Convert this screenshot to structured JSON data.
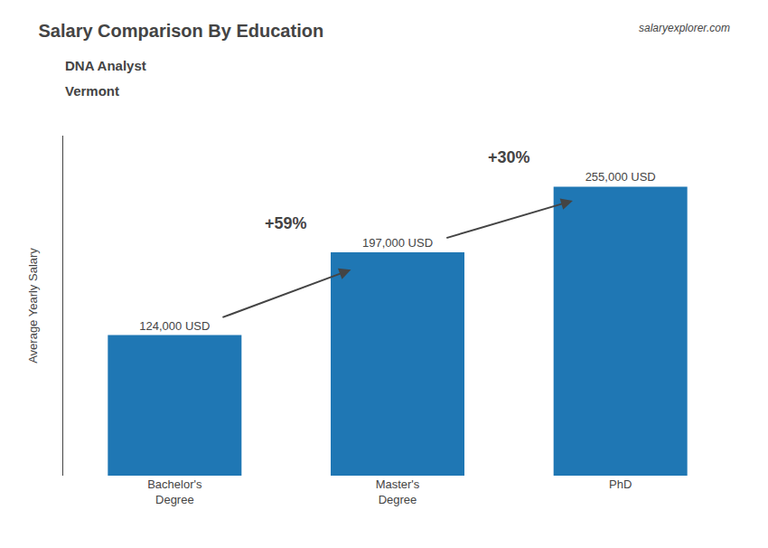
{
  "chart_data": {
    "type": "bar",
    "title": "Salary Comparison By Education",
    "subtitle": [
      "DNA Analyst",
      "Vermont"
    ],
    "categories": [
      "Bachelor's\nDegree",
      "Master's\nDegree",
      "PhD"
    ],
    "values": [
      124000,
      197000,
      255000
    ],
    "value_labels": [
      "124,000 USD",
      "197,000 USD",
      "255,000 USD"
    ],
    "data_labels": true,
    "ylabel": "Average Yearly Salary",
    "ylim": [
      0,
      300000
    ],
    "tick_labels": "x",
    "grid": false,
    "annotations": [
      {
        "text": "+59%",
        "from": 0,
        "to": 1
      },
      {
        "text": "+30%",
        "from": 1,
        "to": 2
      },
      {
        "text": "salaryexplorer.com"
      }
    ]
  }
}
